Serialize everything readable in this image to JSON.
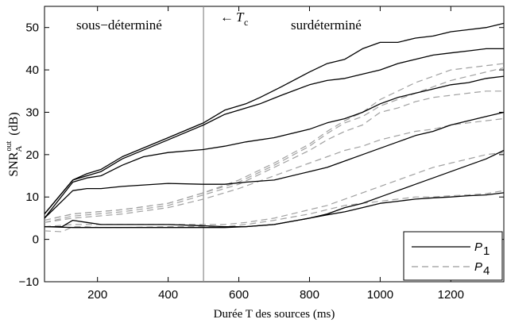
{
  "chart_data": {
    "type": "line",
    "xlabel": "Durée T des sources (ms)",
    "ylabel": "SNR_A^out (dB)",
    "xlim": [
      50,
      1350
    ],
    "ylim": [
      -10,
      55
    ],
    "x_ticks": [
      200,
      400,
      600,
      800,
      1000,
      1200
    ],
    "y_ticks": [
      -10,
      0,
      10,
      20,
      30,
      40,
      50
    ],
    "grid": false,
    "legend_position": "bottom-right",
    "annotations": {
      "left_region": "sous−déterminé",
      "right_region": "surdéterminé",
      "threshold_arrow": "←",
      "threshold_symbol": "T",
      "threshold_subscript": "c",
      "threshold_x": 500
    },
    "legend": [
      {
        "label": "P",
        "subscript": "1",
        "style": "solid",
        "color": "#000000"
      },
      {
        "label": "P",
        "subscript": "4",
        "style": "dashed",
        "color": "#9a9a9a"
      }
    ],
    "series": [
      {
        "name": "P1",
        "style": "solid",
        "color": "#000000",
        "points": [
          [
            50,
            6
          ],
          [
            130,
            14
          ],
          [
            170,
            15.5
          ],
          [
            210,
            16.5
          ],
          [
            270,
            19.5
          ],
          [
            400,
            24
          ],
          [
            500,
            27.5
          ],
          [
            560,
            30.5
          ],
          [
            620,
            32
          ],
          [
            660,
            33.5
          ],
          [
            720,
            36
          ],
          [
            800,
            39.5
          ],
          [
            850,
            41.5
          ],
          [
            900,
            42.5
          ],
          [
            950,
            45
          ],
          [
            1000,
            46.5
          ],
          [
            1050,
            46.5
          ],
          [
            1100,
            47.5
          ],
          [
            1150,
            48
          ],
          [
            1200,
            49
          ],
          [
            1250,
            49.5
          ],
          [
            1300,
            50
          ],
          [
            1350,
            51
          ]
        ]
      },
      {
        "name": "P1",
        "style": "solid",
        "color": "#000000",
        "points": [
          [
            50,
            6
          ],
          [
            130,
            14
          ],
          [
            170,
            15
          ],
          [
            210,
            16
          ],
          [
            270,
            19
          ],
          [
            400,
            23.5
          ],
          [
            500,
            27
          ],
          [
            560,
            29.5
          ],
          [
            620,
            31
          ],
          [
            660,
            32
          ],
          [
            720,
            34
          ],
          [
            800,
            36.5
          ],
          [
            850,
            37.5
          ],
          [
            900,
            38
          ],
          [
            950,
            39
          ],
          [
            1000,
            40
          ],
          [
            1050,
            41.5
          ],
          [
            1100,
            42.5
          ],
          [
            1150,
            43.5
          ],
          [
            1200,
            44
          ],
          [
            1250,
            44.5
          ],
          [
            1300,
            45
          ],
          [
            1350,
            45
          ]
        ]
      },
      {
        "name": "P1",
        "style": "solid",
        "color": "#000000",
        "points": [
          [
            50,
            5
          ],
          [
            130,
            13.5
          ],
          [
            170,
            14.5
          ],
          [
            210,
            15
          ],
          [
            270,
            17.5
          ],
          [
            330,
            19.5
          ],
          [
            400,
            20.5
          ],
          [
            500,
            21.2
          ],
          [
            560,
            22
          ],
          [
            620,
            23
          ],
          [
            700,
            24
          ],
          [
            800,
            26
          ],
          [
            850,
            27.5
          ],
          [
            900,
            28.5
          ],
          [
            950,
            30
          ],
          [
            1000,
            32
          ],
          [
            1050,
            33.5
          ],
          [
            1100,
            34.5
          ],
          [
            1150,
            35.5
          ],
          [
            1200,
            36.5
          ],
          [
            1250,
            37
          ],
          [
            1300,
            38
          ],
          [
            1350,
            38.5
          ]
        ]
      },
      {
        "name": "P1",
        "style": "solid",
        "color": "#000000",
        "points": [
          [
            50,
            5
          ],
          [
            130,
            11.5
          ],
          [
            170,
            12
          ],
          [
            210,
            12
          ],
          [
            270,
            12.5
          ],
          [
            400,
            13.2
          ],
          [
            500,
            13
          ],
          [
            560,
            13
          ],
          [
            620,
            13.5
          ],
          [
            700,
            14
          ],
          [
            800,
            16
          ],
          [
            850,
            17
          ],
          [
            900,
            18.5
          ],
          [
            950,
            20
          ],
          [
            1000,
            21.5
          ],
          [
            1050,
            23
          ],
          [
            1100,
            24.5
          ],
          [
            1150,
            25.5
          ],
          [
            1200,
            27
          ],
          [
            1250,
            28
          ],
          [
            1300,
            29
          ],
          [
            1350,
            30
          ]
        ]
      },
      {
        "name": "P1",
        "style": "solid",
        "color": "#000000",
        "points": [
          [
            50,
            3
          ],
          [
            100,
            3
          ],
          [
            130,
            4.5
          ],
          [
            170,
            4
          ],
          [
            210,
            3.5
          ],
          [
            270,
            3.5
          ],
          [
            400,
            3.5
          ],
          [
            500,
            3.2
          ],
          [
            560,
            3
          ],
          [
            620,
            3
          ],
          [
            700,
            3.5
          ],
          [
            800,
            5
          ],
          [
            850,
            6
          ],
          [
            900,
            7.5
          ],
          [
            950,
            8.5
          ],
          [
            1000,
            10
          ],
          [
            1050,
            11.5
          ],
          [
            1100,
            13
          ],
          [
            1150,
            14.5
          ],
          [
            1200,
            16
          ],
          [
            1250,
            17.5
          ],
          [
            1300,
            19
          ],
          [
            1350,
            21
          ]
        ]
      },
      {
        "name": "P1",
        "style": "solid",
        "color": "#000000",
        "points": [
          [
            50,
            3
          ],
          [
            130,
            2.8
          ],
          [
            170,
            2.8
          ],
          [
            210,
            2.8
          ],
          [
            270,
            2.8
          ],
          [
            400,
            2.8
          ],
          [
            500,
            2.8
          ],
          [
            560,
            2.8
          ],
          [
            620,
            3
          ],
          [
            700,
            3.5
          ],
          [
            800,
            5
          ],
          [
            850,
            5.8
          ],
          [
            900,
            6.5
          ],
          [
            950,
            7.5
          ],
          [
            1000,
            8.5
          ],
          [
            1050,
            9
          ],
          [
            1100,
            9.5
          ],
          [
            1150,
            9.8
          ],
          [
            1200,
            10
          ],
          [
            1250,
            10.3
          ],
          [
            1300,
            10.5
          ],
          [
            1350,
            11
          ]
        ]
      },
      {
        "name": "P4",
        "style": "dashed",
        "color": "#a0a0a0",
        "points": [
          [
            50,
            4.5
          ],
          [
            130,
            6
          ],
          [
            200,
            6.5
          ],
          [
            270,
            7
          ],
          [
            400,
            8.5
          ],
          [
            500,
            11
          ],
          [
            600,
            14
          ],
          [
            700,
            18
          ],
          [
            800,
            22.5
          ],
          [
            850,
            25.5
          ],
          [
            900,
            28
          ],
          [
            950,
            30
          ],
          [
            1000,
            33
          ],
          [
            1050,
            35
          ],
          [
            1100,
            37
          ],
          [
            1150,
            38.5
          ],
          [
            1200,
            40
          ],
          [
            1250,
            40.5
          ],
          [
            1300,
            41
          ],
          [
            1350,
            41.5
          ]
        ]
      },
      {
        "name": "P4",
        "style": "dashed",
        "color": "#a0a0a0",
        "points": [
          [
            50,
            4.5
          ],
          [
            130,
            6
          ],
          [
            200,
            6.5
          ],
          [
            270,
            7
          ],
          [
            400,
            8.5
          ],
          [
            500,
            11
          ],
          [
            600,
            13.5
          ],
          [
            700,
            17.5
          ],
          [
            800,
            22
          ],
          [
            850,
            25
          ],
          [
            900,
            27.5
          ],
          [
            950,
            29
          ],
          [
            1000,
            31.5
          ],
          [
            1050,
            33
          ],
          [
            1100,
            34.5
          ],
          [
            1150,
            36
          ],
          [
            1200,
            37.5
          ],
          [
            1250,
            38.5
          ],
          [
            1300,
            39.5
          ],
          [
            1350,
            40.5
          ]
        ]
      },
      {
        "name": "P4",
        "style": "dashed",
        "color": "#a0a0a0",
        "points": [
          [
            50,
            4
          ],
          [
            130,
            5.5
          ],
          [
            200,
            6
          ],
          [
            270,
            6.5
          ],
          [
            400,
            8
          ],
          [
            500,
            10.5
          ],
          [
            600,
            13
          ],
          [
            700,
            17
          ],
          [
            800,
            21
          ],
          [
            850,
            23.5
          ],
          [
            900,
            25.5
          ],
          [
            950,
            27
          ],
          [
            1000,
            30
          ],
          [
            1050,
            31
          ],
          [
            1100,
            32.5
          ],
          [
            1150,
            33.5
          ],
          [
            1200,
            34
          ],
          [
            1250,
            34.5
          ],
          [
            1300,
            35
          ],
          [
            1350,
            35
          ]
        ]
      },
      {
        "name": "P4",
        "style": "dashed",
        "color": "#a0a0a0",
        "points": [
          [
            50,
            4
          ],
          [
            130,
            5
          ],
          [
            200,
            5.5
          ],
          [
            270,
            6
          ],
          [
            400,
            7.5
          ],
          [
            500,
            9.5
          ],
          [
            600,
            12
          ],
          [
            700,
            15
          ],
          [
            800,
            18
          ],
          [
            850,
            19.5
          ],
          [
            900,
            21
          ],
          [
            950,
            22
          ],
          [
            1000,
            23.5
          ],
          [
            1050,
            24.5
          ],
          [
            1100,
            25.5
          ],
          [
            1150,
            26
          ],
          [
            1200,
            27
          ],
          [
            1250,
            27.5
          ],
          [
            1300,
            28
          ],
          [
            1350,
            28.5
          ]
        ]
      },
      {
        "name": "P4",
        "style": "dashed",
        "color": "#a0a0a0",
        "points": [
          [
            50,
            3
          ],
          [
            130,
            3.5
          ],
          [
            200,
            3.5
          ],
          [
            270,
            3.5
          ],
          [
            400,
            3.5
          ],
          [
            500,
            3.5
          ],
          [
            560,
            3.5
          ],
          [
            620,
            4
          ],
          [
            700,
            5
          ],
          [
            800,
            7
          ],
          [
            850,
            8
          ],
          [
            900,
            9.5
          ],
          [
            950,
            11
          ],
          [
            1000,
            12.5
          ],
          [
            1050,
            14
          ],
          [
            1100,
            15.5
          ],
          [
            1150,
            17
          ],
          [
            1200,
            18
          ],
          [
            1250,
            19
          ],
          [
            1300,
            20
          ],
          [
            1350,
            20.5
          ]
        ]
      },
      {
        "name": "P4",
        "style": "dashed",
        "color": "#a0a0a0",
        "points": [
          [
            50,
            2
          ],
          [
            100,
            1.8
          ],
          [
            130,
            3
          ],
          [
            170,
            3
          ],
          [
            210,
            2.8
          ],
          [
            270,
            2.8
          ],
          [
            400,
            3
          ],
          [
            500,
            3
          ],
          [
            560,
            3
          ],
          [
            620,
            3.5
          ],
          [
            700,
            4.5
          ],
          [
            800,
            6
          ],
          [
            850,
            7
          ],
          [
            900,
            8
          ],
          [
            950,
            8.5
          ],
          [
            1000,
            9
          ],
          [
            1050,
            9.5
          ],
          [
            1100,
            10
          ],
          [
            1150,
            10
          ],
          [
            1200,
            10.3
          ],
          [
            1250,
            10.5
          ],
          [
            1300,
            10.8
          ],
          [
            1350,
            11.5
          ]
        ]
      }
    ]
  }
}
